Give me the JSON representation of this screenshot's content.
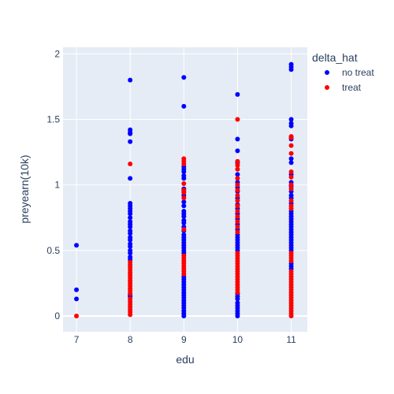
{
  "chart_data": {
    "type": "scatter",
    "xlabel": "edu",
    "ylabel": "preyearn(10k)",
    "xlim": [
      6.75,
      11.3
    ],
    "ylim": [
      -0.12,
      2.05
    ],
    "x_ticks": [
      7,
      8,
      9,
      10,
      11
    ],
    "x_tick_labels": [
      "7",
      "8",
      "9",
      "10",
      "11"
    ],
    "y_ticks": [
      0,
      0.5,
      1,
      1.5,
      2
    ],
    "y_tick_labels": [
      "0",
      "0.5",
      "1",
      "1.5",
      "2"
    ],
    "grid": true,
    "legend": {
      "title": "delta_hat",
      "position": "top-right"
    },
    "series": [
      {
        "name": "no treat",
        "color": "#0000ff",
        "points": [
          [
            7,
            0.54
          ],
          [
            7,
            0.2
          ],
          [
            7,
            0.13
          ],
          [
            8,
            1.8
          ],
          [
            8,
            1.42
          ],
          [
            8,
            1.4
          ],
          [
            8,
            1.39
          ],
          [
            8,
            1.33
          ],
          [
            8,
            1.05
          ],
          [
            8,
            0.86
          ],
          [
            8,
            0.84
          ],
          [
            8,
            0.82
          ],
          [
            8,
            0.8
          ],
          [
            8,
            0.78
          ],
          [
            8,
            0.75
          ],
          [
            8,
            0.72
          ],
          [
            8,
            0.7
          ],
          [
            8,
            0.68
          ],
          [
            8,
            0.65
          ],
          [
            8,
            0.63
          ],
          [
            8,
            0.6
          ],
          [
            8,
            0.58
          ],
          [
            8,
            0.55
          ],
          [
            8,
            0.53
          ],
          [
            8,
            0.5
          ],
          [
            8,
            0.48
          ],
          [
            8,
            0.45
          ],
          [
            8,
            0.43
          ],
          [
            8,
            0.16
          ],
          [
            8,
            0.15
          ],
          [
            9,
            1.82
          ],
          [
            9,
            1.6
          ],
          [
            9,
            1.14
          ],
          [
            9,
            1.12
          ],
          [
            9,
            1.1
          ],
          [
            9,
            1.07
          ],
          [
            9,
            1.05
          ],
          [
            9,
            0.97
          ],
          [
            9,
            0.95
          ],
          [
            9,
            0.92
          ],
          [
            9,
            0.87
          ],
          [
            9,
            0.84
          ],
          [
            9,
            0.8
          ],
          [
            9,
            0.78
          ],
          [
            9,
            0.76
          ],
          [
            9,
            0.73
          ],
          [
            9,
            0.71
          ],
          [
            9,
            0.68
          ],
          [
            9,
            0.65
          ],
          [
            9,
            0.62
          ],
          [
            9,
            0.6
          ],
          [
            9,
            0.58
          ],
          [
            9,
            0.56
          ],
          [
            9,
            0.54
          ],
          [
            9,
            0.52
          ],
          [
            9,
            0.5
          ],
          [
            9,
            0.48
          ],
          [
            9,
            0.3
          ],
          [
            9,
            0.28
          ],
          [
            9,
            0.26
          ],
          [
            9,
            0.24
          ],
          [
            9,
            0.22
          ],
          [
            9,
            0.2
          ],
          [
            9,
            0.18
          ],
          [
            9,
            0.16
          ],
          [
            9,
            0.14
          ],
          [
            9,
            0.12
          ],
          [
            9,
            0.1
          ],
          [
            9,
            0.08
          ],
          [
            9,
            0.06
          ],
          [
            9,
            0.04
          ],
          [
            9,
            0.02
          ],
          [
            9,
            0.0
          ],
          [
            10,
            1.69
          ],
          [
            10,
            1.35
          ],
          [
            10,
            1.26
          ],
          [
            10,
            1.17
          ],
          [
            10,
            1.08
          ],
          [
            10,
            1.02
          ],
          [
            10,
            0.98
          ],
          [
            10,
            0.95
          ],
          [
            10,
            0.9
          ],
          [
            10,
            0.85
          ],
          [
            10,
            0.82
          ],
          [
            10,
            0.78
          ],
          [
            10,
            0.74
          ],
          [
            10,
            0.7
          ],
          [
            10,
            0.66
          ],
          [
            10,
            0.62
          ],
          [
            10,
            0.6
          ],
          [
            10,
            0.58
          ],
          [
            10,
            0.56
          ],
          [
            10,
            0.54
          ],
          [
            10,
            0.52
          ],
          [
            10,
            0.5
          ],
          [
            10,
            0.17
          ],
          [
            10,
            0.15
          ],
          [
            10,
            0.13
          ],
          [
            10,
            0.1
          ],
          [
            10,
            0.08
          ],
          [
            10,
            0.06
          ],
          [
            10,
            0.04
          ],
          [
            10,
            0.02
          ],
          [
            10,
            0.0
          ],
          [
            11,
            1.92
          ],
          [
            11,
            1.9
          ],
          [
            11,
            1.88
          ],
          [
            11,
            1.5
          ],
          [
            11,
            1.47
          ],
          [
            11,
            1.45
          ],
          [
            11,
            1.35
          ],
          [
            11,
            1.2
          ],
          [
            11,
            1.17
          ],
          [
            11,
            1.08
          ],
          [
            11,
            1.02
          ],
          [
            11,
            0.99
          ],
          [
            11,
            0.95
          ],
          [
            11,
            0.92
          ],
          [
            11,
            0.9
          ],
          [
            11,
            0.86
          ],
          [
            11,
            0.8
          ],
          [
            11,
            0.78
          ],
          [
            11,
            0.76
          ],
          [
            11,
            0.74
          ],
          [
            11,
            0.72
          ],
          [
            11,
            0.7
          ],
          [
            11,
            0.68
          ],
          [
            11,
            0.66
          ],
          [
            11,
            0.64
          ],
          [
            11,
            0.62
          ],
          [
            11,
            0.6
          ],
          [
            11,
            0.58
          ],
          [
            11,
            0.56
          ],
          [
            11,
            0.54
          ],
          [
            11,
            0.52
          ],
          [
            11,
            0.5
          ],
          [
            11,
            0.4
          ],
          [
            11,
            0.38
          ],
          [
            11,
            0.36
          ]
        ]
      },
      {
        "name": "treat",
        "color": "#ff0000",
        "points": [
          [
            7,
            0.0
          ],
          [
            8,
            1.16
          ],
          [
            8,
            0.41
          ],
          [
            8,
            0.39
          ],
          [
            8,
            0.37
          ],
          [
            8,
            0.35
          ],
          [
            8,
            0.33
          ],
          [
            8,
            0.31
          ],
          [
            8,
            0.29
          ],
          [
            8,
            0.27
          ],
          [
            8,
            0.25
          ],
          [
            8,
            0.23
          ],
          [
            8,
            0.21
          ],
          [
            8,
            0.19
          ],
          [
            8,
            0.17
          ],
          [
            8,
            0.13
          ],
          [
            8,
            0.11
          ],
          [
            8,
            0.09
          ],
          [
            8,
            0.07
          ],
          [
            8,
            0.05
          ],
          [
            8,
            0.03
          ],
          [
            8,
            0.01
          ],
          [
            9,
            1.2
          ],
          [
            9,
            1.18
          ],
          [
            9,
            1.16
          ],
          [
            9,
            1.01
          ],
          [
            9,
            0.96
          ],
          [
            9,
            0.94
          ],
          [
            9,
            0.9
          ],
          [
            9,
            0.66
          ],
          [
            9,
            0.46
          ],
          [
            9,
            0.44
          ],
          [
            9,
            0.42
          ],
          [
            9,
            0.4
          ],
          [
            9,
            0.38
          ],
          [
            9,
            0.36
          ],
          [
            9,
            0.34
          ],
          [
            9,
            0.32
          ],
          [
            10,
            1.5
          ],
          [
            10,
            1.18
          ],
          [
            10,
            1.15
          ],
          [
            10,
            1.12
          ],
          [
            10,
            1.05
          ],
          [
            10,
            1.0
          ],
          [
            10,
            0.96
          ],
          [
            10,
            0.92
          ],
          [
            10,
            0.88
          ],
          [
            10,
            0.84
          ],
          [
            10,
            0.8
          ],
          [
            10,
            0.76
          ],
          [
            10,
            0.72
          ],
          [
            10,
            0.68
          ],
          [
            10,
            0.64
          ],
          [
            10,
            0.48
          ],
          [
            10,
            0.46
          ],
          [
            10,
            0.44
          ],
          [
            10,
            0.42
          ],
          [
            10,
            0.4
          ],
          [
            10,
            0.38
          ],
          [
            10,
            0.36
          ],
          [
            10,
            0.34
          ],
          [
            10,
            0.32
          ],
          [
            10,
            0.3
          ],
          [
            10,
            0.28
          ],
          [
            10,
            0.26
          ],
          [
            10,
            0.24
          ],
          [
            10,
            0.22
          ],
          [
            10,
            0.2
          ],
          [
            10,
            0.18
          ],
          [
            11,
            1.37
          ],
          [
            11,
            1.36
          ],
          [
            11,
            1.3
          ],
          [
            11,
            1.24
          ],
          [
            11,
            1.1
          ],
          [
            11,
            1.06
          ],
          [
            11,
            1.0
          ],
          [
            11,
            0.97
          ],
          [
            11,
            0.88
          ],
          [
            11,
            0.84
          ],
          [
            11,
            0.82
          ],
          [
            11,
            0.48
          ],
          [
            11,
            0.46
          ],
          [
            11,
            0.44
          ],
          [
            11,
            0.42
          ],
          [
            11,
            0.34
          ],
          [
            11,
            0.32
          ],
          [
            11,
            0.3
          ],
          [
            11,
            0.28
          ],
          [
            11,
            0.26
          ],
          [
            11,
            0.24
          ],
          [
            11,
            0.22
          ],
          [
            11,
            0.2
          ],
          [
            11,
            0.18
          ],
          [
            11,
            0.16
          ],
          [
            11,
            0.14
          ],
          [
            11,
            0.12
          ],
          [
            11,
            0.1
          ],
          [
            11,
            0.08
          ],
          [
            11,
            0.06
          ],
          [
            11,
            0.04
          ],
          [
            11,
            0.02
          ],
          [
            11,
            0.0
          ]
        ]
      }
    ]
  }
}
